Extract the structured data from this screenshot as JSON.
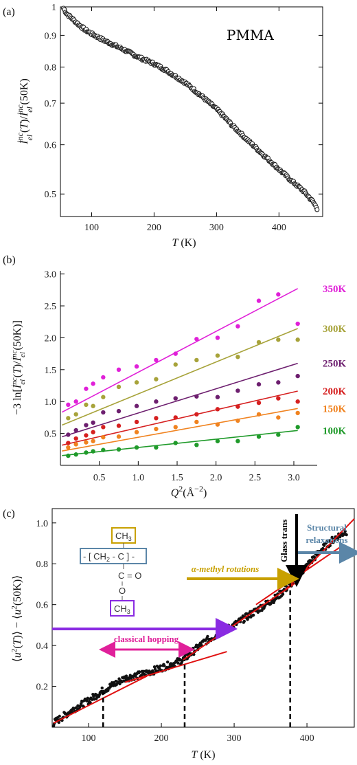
{
  "figure": {
    "panel_labels": [
      "(a)",
      "(b)",
      "(c)"
    ]
  },
  "chart_data": [
    {
      "panel": "(a)",
      "type": "scatter",
      "annotation": "PMMA",
      "xlabel": "T (K)",
      "ylabel": "I_el^inc(T) / I_el^inc(50K)",
      "xlim": [
        50,
        470
      ],
      "ylim": [
        0.46,
        1.0
      ],
      "y_scale": "log",
      "x_ticks": [
        100,
        200,
        300,
        400
      ],
      "y_ticks": [
        0.5,
        0.6,
        0.7,
        0.8,
        0.9,
        1
      ],
      "grid": false,
      "curve": [
        {
          "x": 55,
          "y": 0.995
        },
        {
          "x": 60,
          "y": 0.975
        },
        {
          "x": 70,
          "y": 0.955
        },
        {
          "x": 80,
          "y": 0.935
        },
        {
          "x": 90,
          "y": 0.918
        },
        {
          "x": 100,
          "y": 0.905
        },
        {
          "x": 120,
          "y": 0.883
        },
        {
          "x": 150,
          "y": 0.855
        },
        {
          "x": 175,
          "y": 0.83
        },
        {
          "x": 200,
          "y": 0.81
        },
        {
          "x": 220,
          "y": 0.79
        },
        {
          "x": 250,
          "y": 0.755
        },
        {
          "x": 275,
          "y": 0.72
        },
        {
          "x": 300,
          "y": 0.685
        },
        {
          "x": 325,
          "y": 0.645
        },
        {
          "x": 350,
          "y": 0.61
        },
        {
          "x": 375,
          "y": 0.578
        },
        {
          "x": 400,
          "y": 0.548
        },
        {
          "x": 420,
          "y": 0.525
        },
        {
          "x": 440,
          "y": 0.505
        },
        {
          "x": 455,
          "y": 0.485
        },
        {
          "x": 462,
          "y": 0.472
        }
      ]
    },
    {
      "panel": "(b)",
      "type": "scatter",
      "xlabel": "Q² (Å⁻²)",
      "ylabel": "−3 ln[ I_el^inc(T) / I_el^inc(50K) ]",
      "xlim": [
        0,
        3.3
      ],
      "ylim": [
        0,
        3.05
      ],
      "x_ticks": [
        0.5,
        1.0,
        1.5,
        2.0,
        2.5,
        3.0
      ],
      "y_ticks": [
        0.5,
        1.0,
        1.5,
        2.0,
        2.5,
        3.0
      ],
      "x_tick_labels": [
        "0.5",
        "1.0",
        "1.5",
        "2.0",
        "2.5",
        "3.0"
      ],
      "y_tick_labels": [
        "0.5",
        "1.0",
        "1.5",
        "2.0",
        "2.5",
        "3.0"
      ],
      "q2": [
        0.1,
        0.2,
        0.33,
        0.42,
        0.55,
        0.75,
        0.98,
        1.23,
        1.48,
        1.75,
        2.02,
        2.28,
        2.55,
        2.8,
        3.05
      ],
      "series": [
        {
          "name": "350K",
          "color": "#e020d8",
          "fit": [
            0.82,
            0.64
          ],
          "values": [
            0.95,
            1.0,
            1.2,
            1.28,
            1.38,
            1.5,
            1.55,
            1.65,
            1.75,
            1.98,
            2.0,
            2.18,
            2.58,
            2.68,
            2.22
          ]
        },
        {
          "name": "300K",
          "color": "#a7a33a",
          "fit": [
            0.62,
            0.5
          ],
          "values": [
            0.74,
            0.8,
            0.95,
            0.93,
            1.07,
            1.23,
            1.3,
            1.35,
            1.58,
            1.65,
            1.72,
            1.7,
            1.93,
            1.97,
            1.97
          ]
        },
        {
          "name": "250K",
          "color": "#6d1f6f",
          "fit": [
            0.44,
            0.38
          ],
          "values": [
            0.48,
            0.55,
            0.63,
            0.67,
            0.83,
            0.85,
            0.93,
            1.0,
            1.05,
            1.08,
            1.07,
            1.17,
            1.27,
            1.3,
            1.4
          ]
        },
        {
          "name": "200K",
          "color": "#d62020",
          "fit": [
            0.31,
            0.28
          ],
          "values": [
            0.35,
            0.42,
            0.47,
            0.52,
            0.6,
            0.62,
            0.68,
            0.74,
            0.75,
            0.8,
            0.88,
            0.92,
            0.98,
            1.05,
            1.0
          ]
        },
        {
          "name": "150K",
          "color": "#f08320",
          "fit": [
            0.22,
            0.22
          ],
          "values": [
            0.28,
            0.33,
            0.36,
            0.38,
            0.44,
            0.45,
            0.52,
            0.57,
            0.6,
            0.68,
            0.64,
            0.7,
            0.8,
            0.75,
            0.82
          ]
        },
        {
          "name": "100K",
          "color": "#1f9a2a",
          "fit": [
            0.15,
            0.13
          ],
          "values": [
            0.15,
            0.17,
            0.2,
            0.22,
            0.24,
            0.25,
            0.28,
            0.28,
            0.35,
            0.32,
            0.38,
            0.38,
            0.45,
            0.48,
            0.6
          ]
        }
      ]
    },
    {
      "panel": "(c)",
      "type": "scatter",
      "xlabel": "T (K)",
      "ylabel": "⟨u²(T)⟩ − ⟨u²(50K)⟩",
      "xlim": [
        50,
        465
      ],
      "ylim": [
        0,
        1.07
      ],
      "x_ticks": [
        100,
        200,
        300,
        400
      ],
      "y_ticks": [
        0.2,
        0.4,
        0.6,
        0.8,
        1.0
      ],
      "y_tick_labels": [
        "0.2",
        "0.4",
        "0.6",
        "0.8",
        "1.0"
      ],
      "curve": [
        {
          "x": 52,
          "y": 0.02
        },
        {
          "x": 80,
          "y": 0.09
        },
        {
          "x": 100,
          "y": 0.13
        },
        {
          "x": 120,
          "y": 0.18
        },
        {
          "x": 150,
          "y": 0.24
        },
        {
          "x": 175,
          "y": 0.26
        },
        {
          "x": 200,
          "y": 0.29
        },
        {
          "x": 230,
          "y": 0.33
        },
        {
          "x": 260,
          "y": 0.42
        },
        {
          "x": 300,
          "y": 0.5
        },
        {
          "x": 330,
          "y": 0.57
        },
        {
          "x": 360,
          "y": 0.64
        },
        {
          "x": 380,
          "y": 0.71
        },
        {
          "x": 400,
          "y": 0.79
        },
        {
          "x": 420,
          "y": 0.87
        },
        {
          "x": 440,
          "y": 0.93
        },
        {
          "x": 455,
          "y": 0.96
        }
      ],
      "fit_lines": [
        {
          "x": [
            52,
            180
          ],
          "y": [
            0.02,
            0.25
          ]
        },
        {
          "x": [
            150,
            290
          ],
          "y": [
            0.22,
            0.37
          ]
        },
        {
          "x": [
            230,
            390
          ],
          "y": [
            0.33,
            0.72
          ]
        },
        {
          "x": [
            330,
            445
          ],
          "y": [
            0.6,
            0.88
          ]
        },
        {
          "x": [
            370,
            465
          ],
          "y": [
            0.67,
            1.02
          ]
        }
      ],
      "dashed_markers": [
        {
          "x": 120,
          "y_top": 0.17
        },
        {
          "x": 232,
          "y_top": 0.33
        },
        {
          "x": 377,
          "y_top": 0.72
        }
      ],
      "annotations": {
        "glass_trans": "Glass trans",
        "structural": [
          "Structural",
          "relaxations"
        ],
        "alpha_methyl": "α-methyl rotations",
        "classical_hopping": "classical hopping",
        "molecule": {
          "top": "CH",
          "top_sub": "3",
          "backbone": "- [ CH",
          "backbone_sub": "2",
          "backbone_tail": " - C ] -",
          "carbonyl": "C = O",
          "oxygen": "O",
          "bottom": "CH",
          "bottom_sub": "3"
        }
      },
      "colors": {
        "glass_arrow": "#000000",
        "structural": "#5b86a8",
        "alpha_methyl": "#c8a000",
        "classical_hopping": "#e0209a",
        "violet_arrow": "#8a2be2",
        "fit": "#e01010"
      }
    }
  ]
}
